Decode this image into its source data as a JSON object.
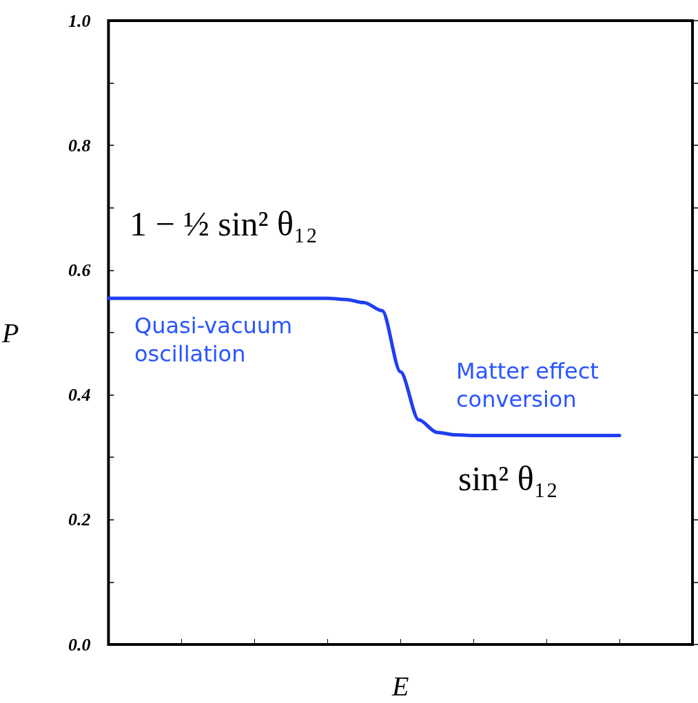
{
  "chart_data": {
    "type": "line",
    "xlabel": "E",
    "ylabel": "P",
    "categories": [
      null,
      null,
      null,
      null,
      null,
      null,
      null,
      null,
      null,
      null,
      null,
      null,
      null,
      null,
      null,
      null,
      null,
      null,
      null,
      null,
      null,
      null,
      null,
      null,
      null,
      null,
      null,
      null,
      null,
      null,
      null,
      null,
      null
    ],
    "series": [
      {
        "color": "#1f3ff0",
        "values": [
          0.555,
          0.555,
          0.555,
          0.555,
          0.555,
          0.555,
          0.555,
          0.555,
          0.555,
          0.555,
          0.555,
          0.555,
          0.555,
          0.553,
          0.548,
          0.535,
          0.437,
          0.36,
          0.34,
          0.336,
          0.335,
          0.335,
          0.335,
          0.335,
          0.335,
          0.335,
          0.335,
          0.335,
          0.335,
          null,
          null,
          null,
          null
        ]
      }
    ],
    "ylim": [
      0,
      1
    ],
    "yticks": [
      {
        "value": 0,
        "label": "0.0"
      },
      {
        "value": 0.1,
        "label": null
      },
      {
        "value": 0.2,
        "label": "0.2"
      },
      {
        "value": 0.3,
        "label": null
      },
      {
        "value": 0.4,
        "label": "0.4"
      },
      {
        "value": 0.5,
        "label": null
      },
      {
        "value": 0.6,
        "label": "0.6"
      },
      {
        "value": 0.7,
        "label": null
      },
      {
        "value": 0.8,
        "label": "0.8"
      },
      {
        "value": 0.9,
        "label": null
      },
      {
        "value": 1,
        "label": "1.0"
      }
    ],
    "annotations": [
      "1 − ½ sin² θ₁₂",
      "Quasi-vacuum oscillation",
      "Matter effect conversion",
      "sin² θ₁₂"
    ],
    "grid": false,
    "marker": "none",
    "line_style": "solid"
  }
}
